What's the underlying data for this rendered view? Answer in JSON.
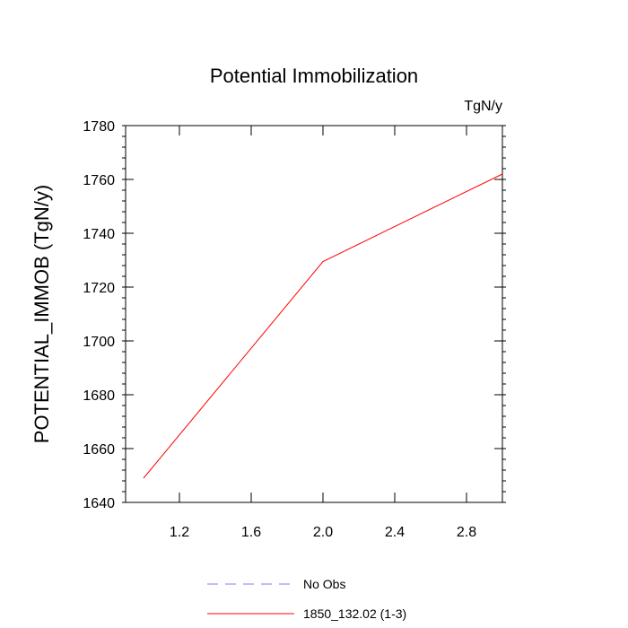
{
  "chart_data": {
    "type": "line",
    "title": "Potential Immobilization",
    "units_label": "TgN/y",
    "ylabel": "POTENTIAL_IMMOB  (TgN/y)",
    "xlabel": "",
    "xlim": [
      0.9,
      3.0
    ],
    "ylim": [
      1640,
      1780
    ],
    "x_ticks": [
      1.2,
      1.6,
      2.0,
      2.4,
      2.8
    ],
    "x_tick_labels": [
      "1.2",
      "1.6",
      "2.0",
      "2.4",
      "2.8"
    ],
    "y_ticks": [
      1640,
      1660,
      1680,
      1700,
      1720,
      1740,
      1760,
      1780
    ],
    "y_tick_labels": [
      "1640",
      "1660",
      "1680",
      "1700",
      "1720",
      "1740",
      "1760",
      "1780"
    ],
    "grid": false,
    "legend_position": "bottom-center",
    "series": [
      {
        "name": "No Obs",
        "color": "#7b7bff",
        "dash": "dashed",
        "x": [],
        "y": []
      },
      {
        "name": "1850_132.02 (1-3)",
        "color": "#ff0000",
        "dash": "solid",
        "x": [
          1.0,
          2.0,
          3.0
        ],
        "y": [
          1649,
          1729.5,
          1762
        ]
      }
    ]
  }
}
